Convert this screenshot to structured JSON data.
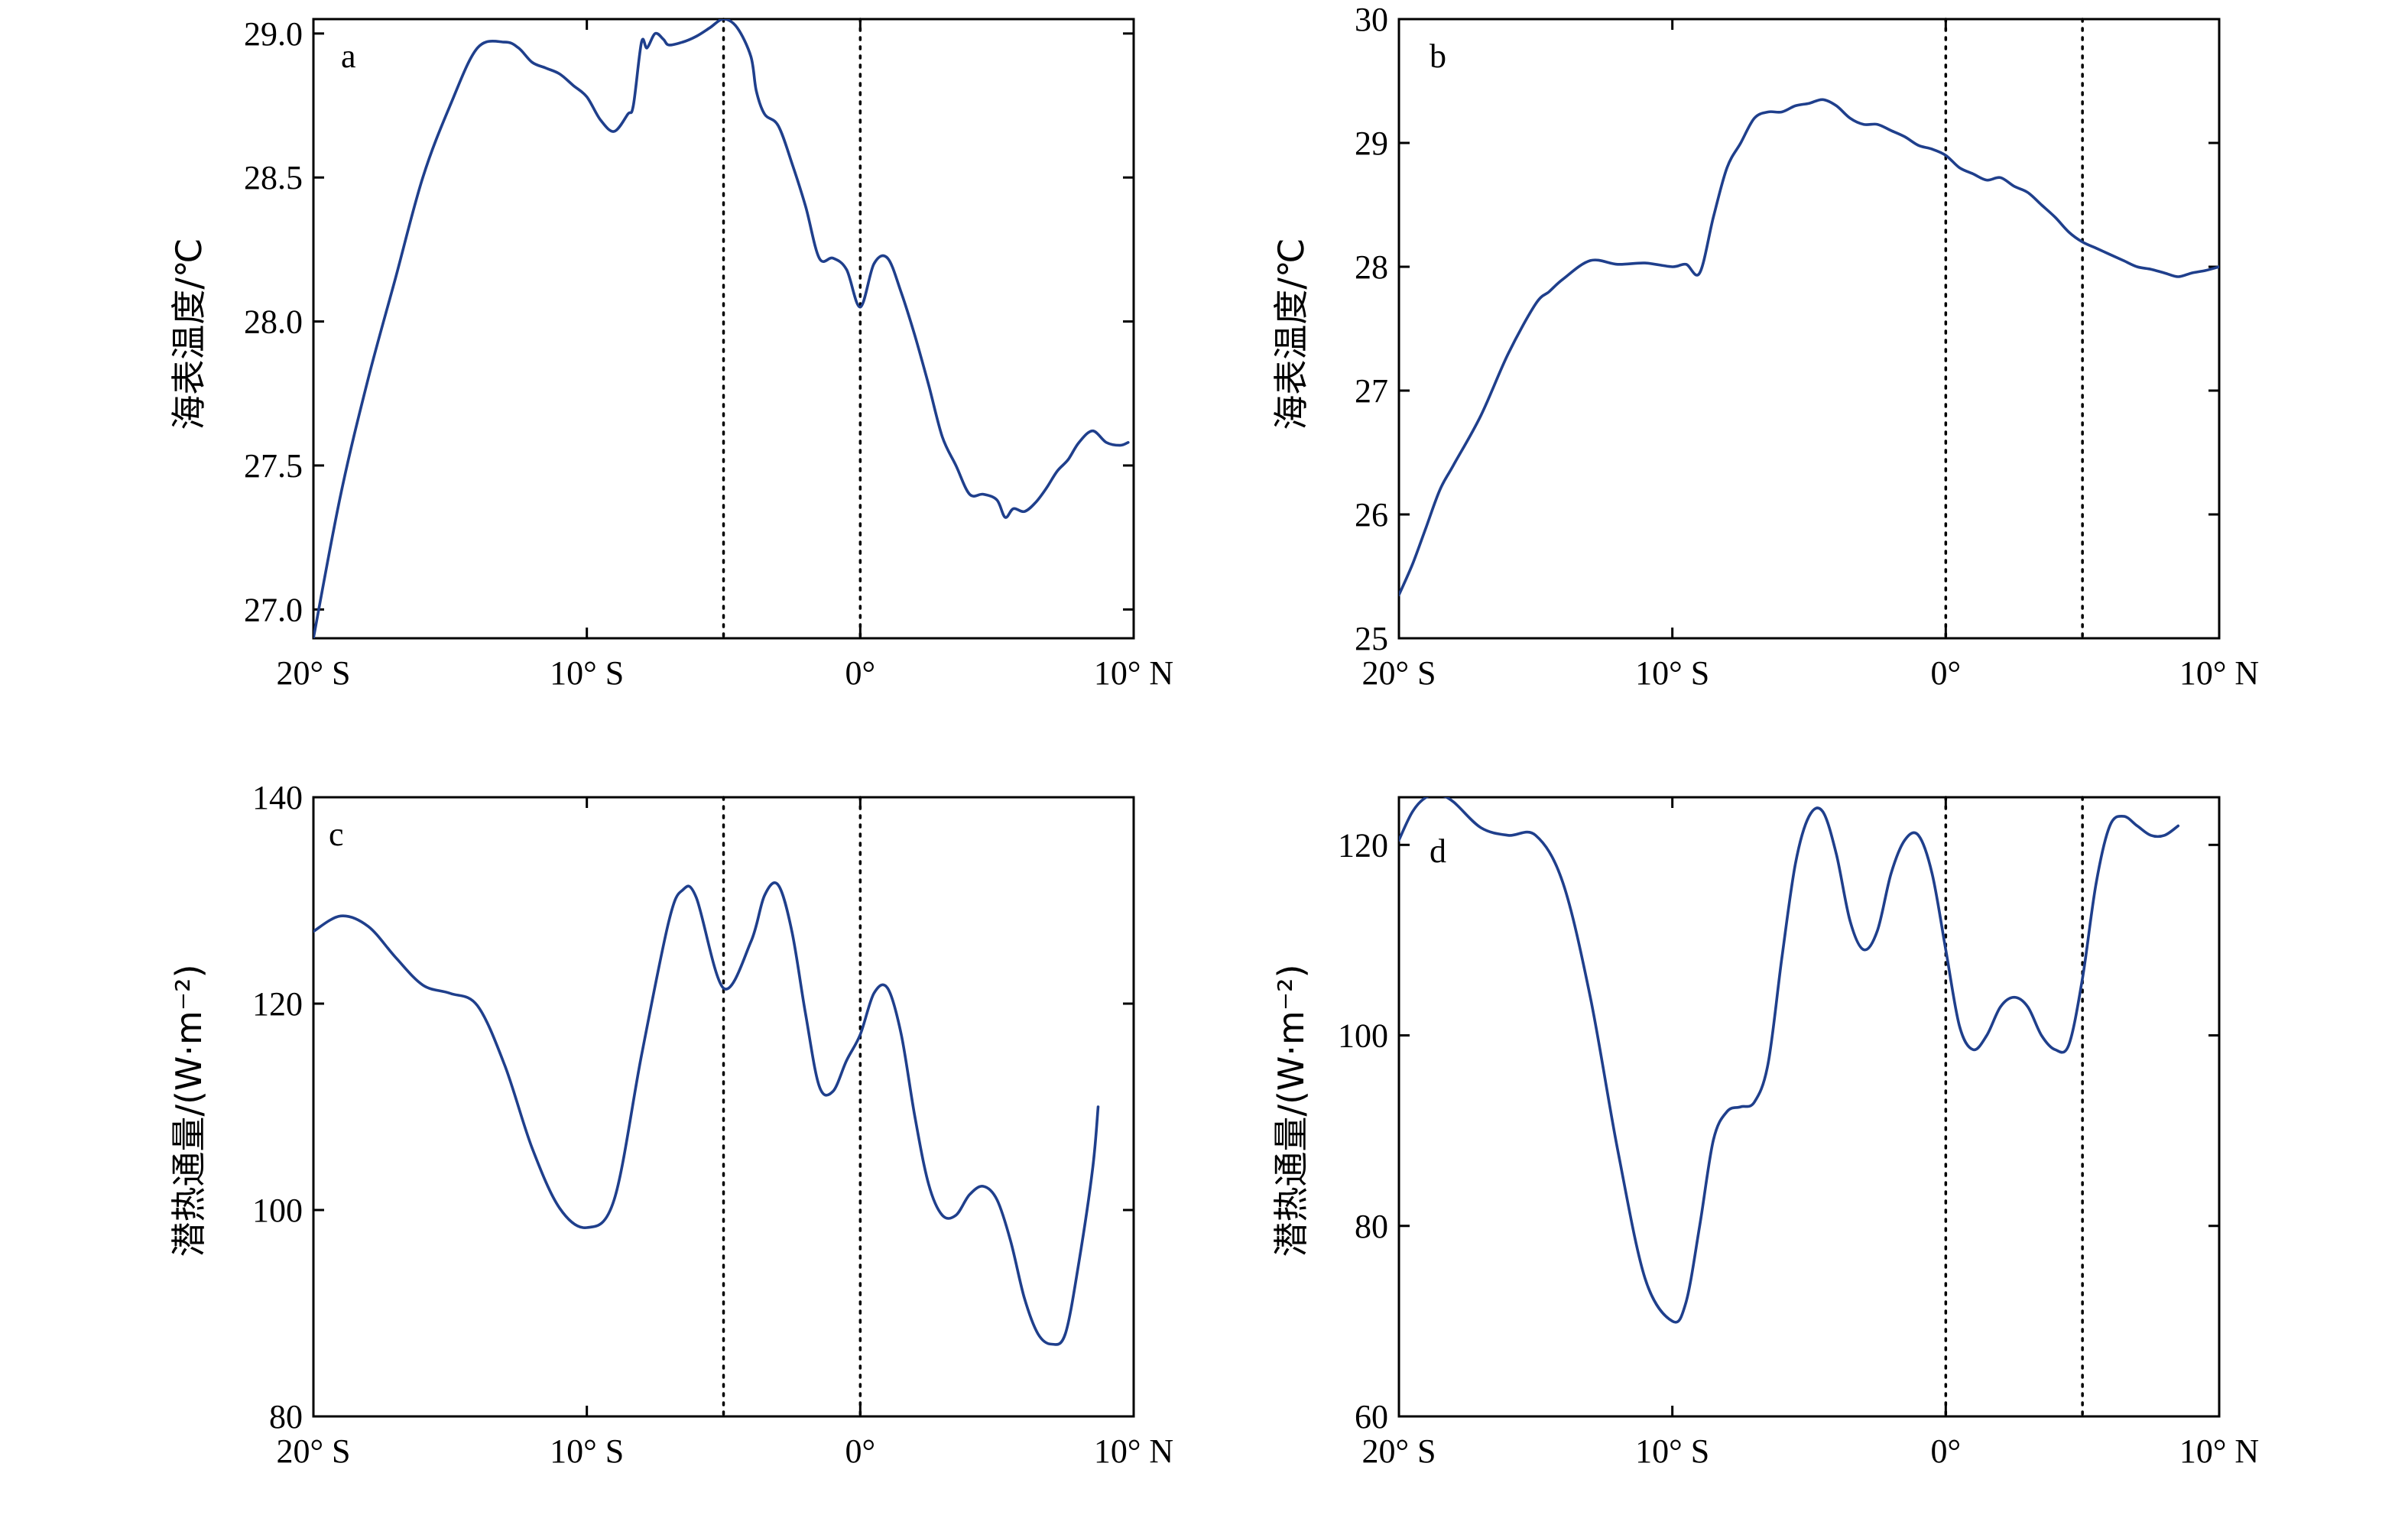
{
  "chart_data": [
    {
      "panel": "a",
      "type": "line",
      "ylabel": "海表温度/℃",
      "xlim": [
        -20,
        10
      ],
      "ylim": [
        26.9,
        29.05
      ],
      "xticks": [
        -20,
        -10,
        0,
        10
      ],
      "xticklabels": [
        "20° S",
        "10° S",
        "0°",
        "10° N"
      ],
      "yticks": [
        27.0,
        27.5,
        28.0,
        28.5,
        29.0
      ],
      "yticklabels": [
        "27.0",
        "27.5",
        "28.0",
        "28.5",
        "29.0"
      ],
      "vlines": [
        -5,
        0
      ],
      "series": [
        {
          "color": "#1f3f8c",
          "x": [
            -20,
            -19,
            -18,
            -17,
            -16,
            -15,
            -14,
            -13,
            -12.5,
            -12,
            -11.5,
            -11,
            -10.5,
            -10,
            -9.5,
            -9,
            -8.5,
            -8.3,
            -8,
            -7.8,
            -7.5,
            -7.2,
            -7,
            -6.5,
            -6,
            -5.5,
            -5,
            -4.5,
            -4,
            -3.8,
            -3.5,
            -3,
            -2.5,
            -2,
            -1.5,
            -1,
            -0.5,
            0,
            0.5,
            1,
            1.5,
            2,
            2.5,
            3,
            3.5,
            4,
            4.5,
            5,
            5.3,
            5.6,
            6,
            6.4,
            6.8,
            7.2,
            7.6,
            8,
            8.5,
            9,
            9.5,
            9.8
          ],
          "values": [
            26.9,
            27.4,
            27.8,
            28.15,
            28.5,
            28.75,
            28.95,
            28.97,
            28.95,
            28.9,
            28.88,
            28.86,
            28.82,
            28.78,
            28.7,
            28.66,
            28.72,
            28.75,
            28.97,
            28.95,
            29.0,
            28.98,
            28.96,
            28.97,
            28.99,
            29.02,
            29.05,
            29.02,
            28.92,
            28.8,
            28.72,
            28.68,
            28.55,
            28.4,
            28.22,
            28.22,
            28.18,
            28.05,
            28.2,
            28.22,
            28.1,
            27.95,
            27.78,
            27.6,
            27.5,
            27.4,
            27.4,
            27.38,
            27.32,
            27.35,
            27.34,
            27.37,
            27.42,
            27.48,
            27.52,
            27.58,
            27.62,
            27.58,
            27.57,
            27.58
          ]
        }
      ]
    },
    {
      "panel": "b",
      "type": "line",
      "ylabel": "海表温度/℃",
      "xlim": [
        -20,
        10
      ],
      "ylim": [
        25,
        30
      ],
      "xticks": [
        -20,
        -10,
        0,
        10
      ],
      "xticklabels": [
        "20° S",
        "10° S",
        "0°",
        "10° N"
      ],
      "yticks": [
        25,
        26,
        27,
        28,
        29,
        30
      ],
      "yticklabels": [
        "25",
        "26",
        "27",
        "28",
        "29",
        "30"
      ],
      "vlines": [
        0,
        5
      ],
      "series": [
        {
          "color": "#1f3f8c",
          "x": [
            -20,
            -19.5,
            -19,
            -18.5,
            -18,
            -17,
            -16,
            -15,
            -14.5,
            -14,
            -13,
            -12,
            -11,
            -10,
            -9.5,
            -9,
            -8.5,
            -8,
            -7.5,
            -7,
            -6.5,
            -6,
            -5.5,
            -5,
            -4.5,
            -4,
            -3.5,
            -3,
            -2.5,
            -2,
            -1.5,
            -1,
            -0.5,
            0,
            0.5,
            1,
            1.5,
            2,
            2.5,
            3,
            3.5,
            4,
            4.5,
            5,
            5.5,
            6,
            6.5,
            7,
            7.5,
            8,
            8.5,
            9,
            9.5,
            10
          ],
          "values": [
            25.35,
            25.6,
            25.9,
            26.2,
            26.4,
            26.8,
            27.3,
            27.7,
            27.8,
            27.9,
            28.05,
            28.02,
            28.03,
            28.0,
            28.02,
            27.95,
            28.4,
            28.8,
            29.0,
            29.2,
            29.25,
            29.25,
            29.3,
            29.32,
            29.35,
            29.3,
            29.2,
            29.15,
            29.15,
            29.1,
            29.05,
            28.98,
            28.95,
            28.9,
            28.8,
            28.75,
            28.7,
            28.72,
            28.65,
            28.6,
            28.5,
            28.4,
            28.28,
            28.2,
            28.15,
            28.1,
            28.05,
            28.0,
            27.98,
            27.95,
            27.92,
            27.95,
            27.97,
            28.0
          ]
        }
      ]
    },
    {
      "panel": "c",
      "type": "line",
      "ylabel": "潜热通量/(W·m⁻²)",
      "xlim": [
        -20,
        10
      ],
      "ylim": [
        80,
        140
      ],
      "xticks": [
        -20,
        -10,
        0,
        10
      ],
      "xticklabels": [
        "20° S",
        "10° S",
        "0°",
        "10° N"
      ],
      "yticks": [
        80,
        100,
        120,
        140
      ],
      "yticklabels": [
        "80",
        "100",
        "120",
        "140"
      ],
      "vlines": [
        -5,
        0
      ],
      "series": [
        {
          "color": "#1f3f8c",
          "x": [
            -20,
            -19,
            -18,
            -17,
            -16,
            -15,
            -14,
            -13,
            -12,
            -11,
            -10,
            -9,
            -8,
            -7,
            -6.5,
            -6,
            -5,
            -4,
            -3.5,
            -3,
            -2.5,
            -2,
            -1.5,
            -1,
            -0.5,
            0,
            0.5,
            1,
            1.5,
            2,
            2.5,
            3,
            3.5,
            4,
            4.5,
            5,
            5.5,
            6,
            6.5,
            7,
            7.5,
            8,
            8.5,
            8.7
          ],
          "values": [
            127,
            128.5,
            127.5,
            124.5,
            121.8,
            121,
            119.8,
            114,
            106,
            100.2,
            98.3,
            101,
            115,
            128,
            131,
            130.3,
            121.5,
            126,
            130.5,
            131.5,
            127,
            119,
            112,
            111.5,
            114.5,
            117,
            121,
            121.5,
            117,
            109,
            102.5,
            99.5,
            99.5,
            101.5,
            102.3,
            101,
            97,
            91.5,
            88,
            87,
            88,
            95,
            104,
            110
          ]
        }
      ]
    },
    {
      "panel": "d",
      "type": "line",
      "ylabel": "潜热通量/(W·m⁻²)",
      "xlim": [
        -20,
        10
      ],
      "ylim": [
        60,
        125
      ],
      "xticks": [
        -20,
        -10,
        0,
        10
      ],
      "xticklabels": [
        "20° S",
        "10° S",
        "0°",
        "10° N"
      ],
      "yticks": [
        60,
        80,
        100,
        120
      ],
      "yticklabels": [
        "60",
        "80",
        "100",
        "120"
      ],
      "vlines": [
        0,
        5
      ],
      "series": [
        {
          "color": "#1f3f8c",
          "x": [
            -20,
            -19.5,
            -19,
            -18.5,
            -18,
            -17,
            -16,
            -15,
            -14,
            -13,
            -12,
            -11,
            -10,
            -9.5,
            -9,
            -8.5,
            -8,
            -7.5,
            -7,
            -6.5,
            -6,
            -5.5,
            -5,
            -4.5,
            -4,
            -3.5,
            -3,
            -2.5,
            -2,
            -1.5,
            -1,
            -0.5,
            0,
            0.5,
            1,
            1.5,
            2,
            2.5,
            3,
            3.5,
            4,
            4.5,
            5,
            5.5,
            6,
            6.5,
            7,
            7.5,
            8,
            8.5
          ],
          "values": [
            120.5,
            123.5,
            125,
            125.2,
            124.5,
            121.8,
            121,
            121,
            116,
            104,
            88,
            74.5,
            70,
            72,
            80,
            89,
            92,
            92.5,
            93,
            97,
            108,
            118,
            123,
            123.5,
            119,
            112,
            109,
            111,
            117,
            120.5,
            121,
            117,
            109,
            101,
            98.5,
            100,
            103,
            104,
            103,
            100,
            98.5,
            99,
            106,
            116,
            122,
            123,
            122,
            121,
            121,
            122
          ]
        }
      ]
    }
  ],
  "panels": [
    {
      "letter": "a"
    },
    {
      "letter": "b"
    },
    {
      "letter": "c"
    },
    {
      "letter": "d"
    }
  ]
}
